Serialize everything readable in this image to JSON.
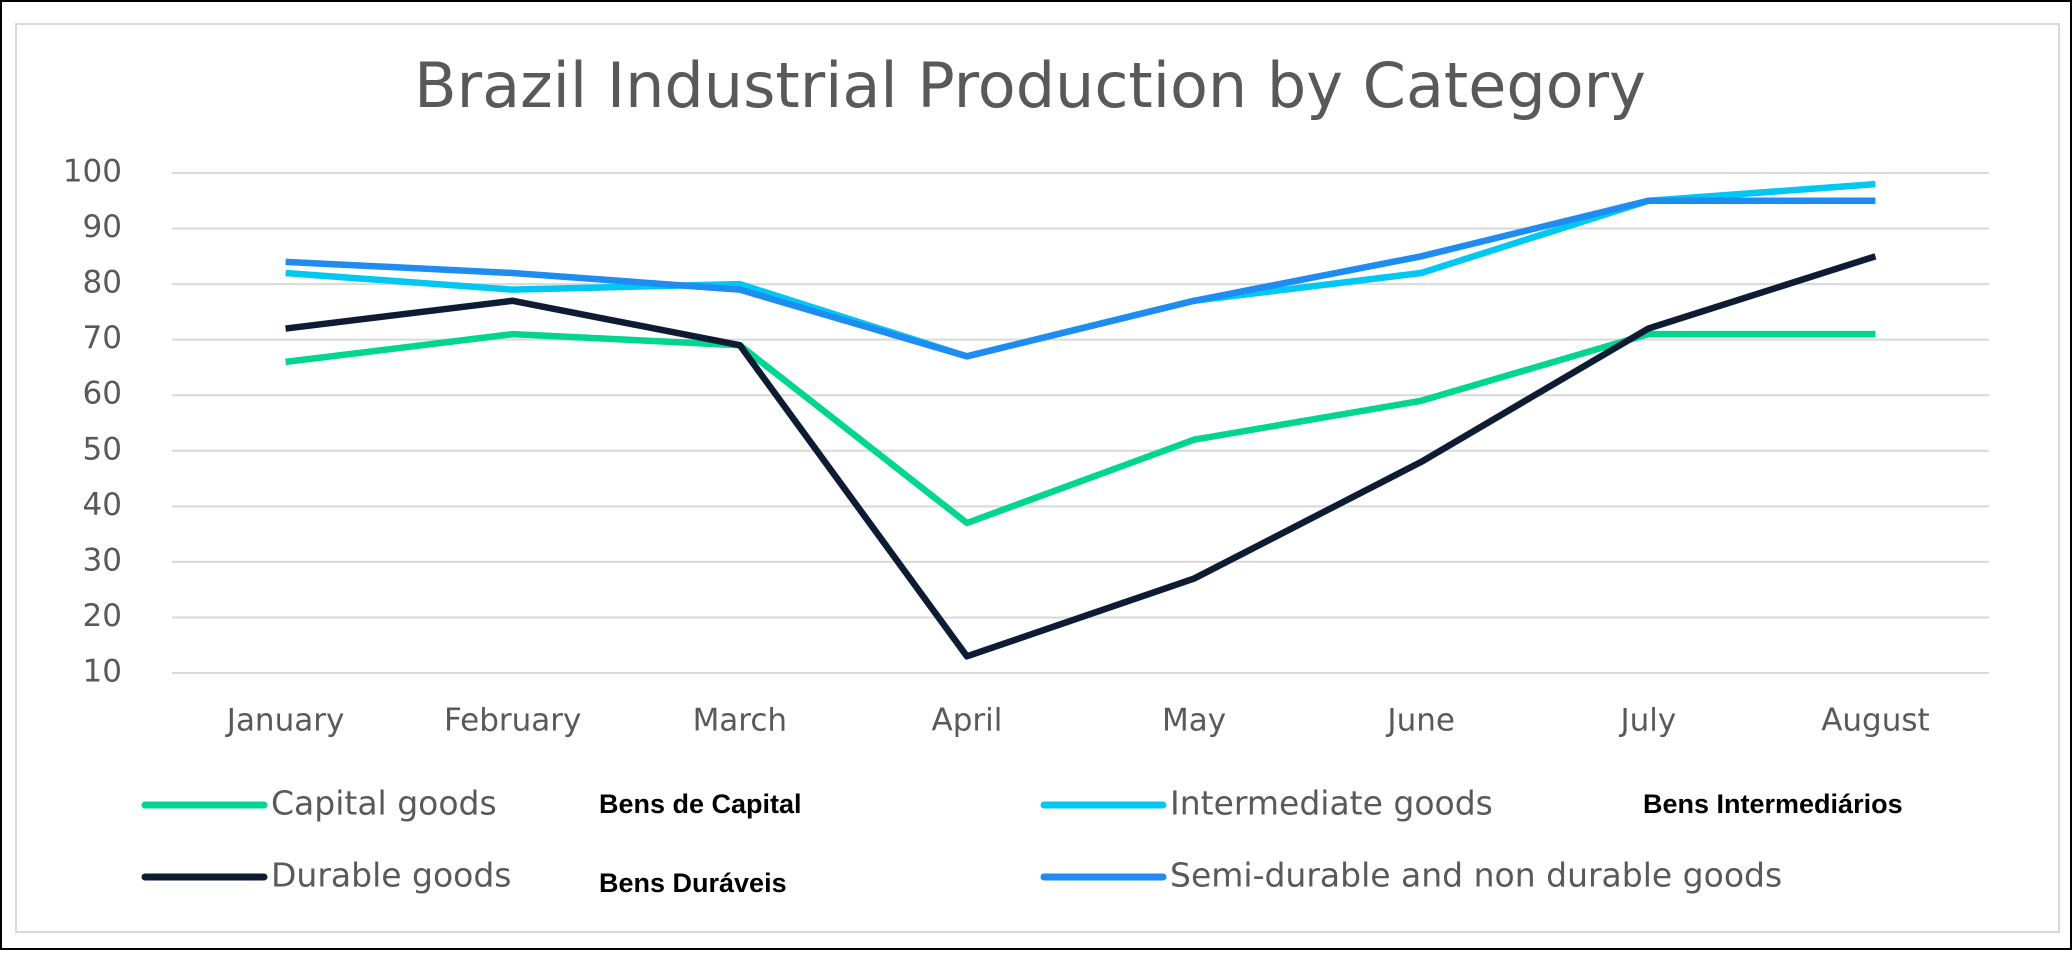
{
  "chart_data": {
    "type": "line",
    "title": "Brazil Industrial Production by Category",
    "categories": [
      "January",
      "February",
      "March",
      "April",
      "May",
      "June",
      "July",
      "August"
    ],
    "series": [
      {
        "name": "Capital goods",
        "color": "#00d68f",
        "values": [
          66,
          71,
          69,
          37,
          52,
          59,
          71,
          71
        ]
      },
      {
        "name": "Intermediate goods",
        "color": "#00c8f2",
        "values": [
          82,
          79,
          80,
          67,
          77,
          82,
          95,
          98
        ]
      },
      {
        "name": "Durable goods",
        "color": "#0d1b33",
        "values": [
          72,
          77,
          69,
          13,
          27,
          48,
          72,
          85
        ]
      },
      {
        "name": "Semi-durable and non durable goods",
        "color": "#1e8cf0",
        "values": [
          84,
          82,
          79,
          67,
          77,
          85,
          95,
          95
        ]
      }
    ],
    "annotations": [
      "Bens de Capital",
      "Bens Intermediários",
      "Bens Duráveis"
    ],
    "ylim": [
      10,
      100
    ],
    "yticks": [
      10,
      20,
      30,
      40,
      50,
      60,
      70,
      80,
      90,
      100
    ],
    "grid": true
  }
}
